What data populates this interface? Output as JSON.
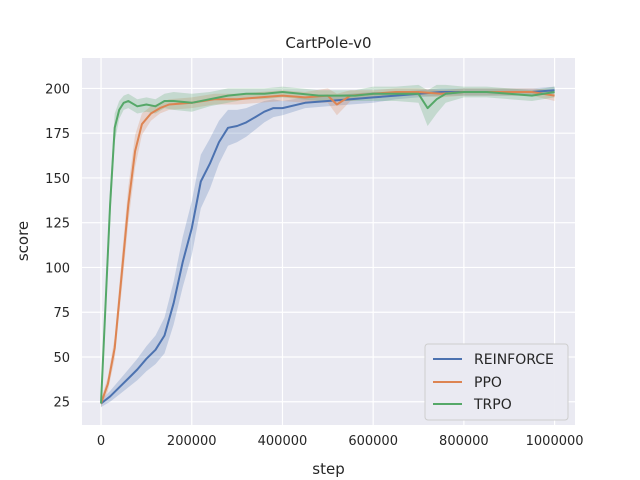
{
  "chart_data": {
    "type": "line",
    "title": "CartPole-v0",
    "xlabel": "step",
    "ylabel": "score",
    "xlim": [
      -42000,
      1045000
    ],
    "ylim": [
      12,
      217
    ],
    "xticks": [
      0,
      200000,
      400000,
      600000,
      800000,
      1000000
    ],
    "xtick_labels": [
      "0",
      "200000",
      "400000",
      "600000",
      "800000",
      "1000000"
    ],
    "yticks": [
      25,
      50,
      75,
      100,
      125,
      150,
      175,
      200
    ],
    "ytick_labels": [
      "25",
      "50",
      "75",
      "100",
      "125",
      "150",
      "175",
      "200"
    ],
    "grid": true,
    "legend_position": "lower-right",
    "colors": {
      "background": "#eaeaf2",
      "grid": "#ffffff",
      "REINFORCE": "#4c72b0",
      "PPO": "#dd8452",
      "TRPO": "#55a868"
    },
    "series": [
      {
        "name": "REINFORCE",
        "x": [
          0,
          20000,
          40000,
          60000,
          80000,
          100000,
          120000,
          140000,
          160000,
          180000,
          200000,
          220000,
          240000,
          260000,
          280000,
          300000,
          320000,
          340000,
          360000,
          380000,
          400000,
          450000,
          500000,
          550000,
          600000,
          650000,
          700000,
          750000,
          800000,
          850000,
          900000,
          950000,
          1000000
        ],
        "y": [
          24,
          28,
          33,
          38,
          43,
          49,
          54,
          62,
          80,
          103,
          122,
          148,
          158,
          170,
          178,
          179,
          181,
          184,
          187,
          189,
          189,
          192,
          193,
          194,
          195,
          196,
          197,
          198,
          198,
          198,
          198,
          198,
          199
        ],
        "band": [
          2,
          3,
          4,
          5,
          6,
          7,
          8,
          10,
          12,
          14,
          15,
          15,
          14,
          12,
          10,
          9,
          8,
          7,
          6,
          5,
          4,
          3,
          3,
          3,
          3,
          2,
          2,
          2,
          2,
          2,
          2,
          2,
          2
        ]
      },
      {
        "name": "PPO",
        "x": [
          0,
          15000,
          30000,
          45000,
          60000,
          75000,
          90000,
          110000,
          130000,
          150000,
          200000,
          250000,
          300000,
          350000,
          400000,
          450000,
          500000,
          520000,
          550000,
          600000,
          650000,
          700000,
          750000,
          800000,
          850000,
          900000,
          950000,
          1000000
        ],
        "y": [
          24,
          35,
          55,
          95,
          135,
          165,
          180,
          186,
          189,
          191,
          192,
          194,
          194,
          195,
          196,
          195,
          196,
          191,
          196,
          197,
          198,
          198,
          197,
          198,
          198,
          198,
          198,
          196
        ],
        "band": [
          2,
          4,
          6,
          9,
          10,
          9,
          6,
          4,
          3,
          3,
          3,
          3,
          3,
          3,
          3,
          3,
          4,
          6,
          3,
          2,
          2,
          2,
          2,
          2,
          2,
          2,
          2,
          3
        ]
      },
      {
        "name": "TRPO",
        "x": [
          0,
          10000,
          20000,
          30000,
          40000,
          50000,
          60000,
          80000,
          100000,
          120000,
          140000,
          160000,
          200000,
          240000,
          280000,
          320000,
          360000,
          400000,
          440000,
          480000,
          520000,
          560000,
          600000,
          650000,
          700000,
          720000,
          740000,
          760000,
          800000,
          850000,
          900000,
          950000,
          1000000
        ],
        "y": [
          24,
          80,
          135,
          178,
          188,
          192,
          193,
          190,
          191,
          190,
          193,
          193,
          192,
          194,
          196,
          197,
          197,
          198,
          197,
          196,
          196,
          196,
          197,
          197,
          197,
          189,
          194,
          197,
          198,
          198,
          197,
          196,
          198
        ],
        "band": [
          2,
          8,
          10,
          8,
          5,
          4,
          4,
          4,
          4,
          4,
          4,
          5,
          5,
          4,
          4,
          3,
          3,
          3,
          3,
          3,
          3,
          3,
          4,
          4,
          5,
          10,
          8,
          5,
          3,
          3,
          3,
          3,
          3
        ]
      }
    ]
  }
}
